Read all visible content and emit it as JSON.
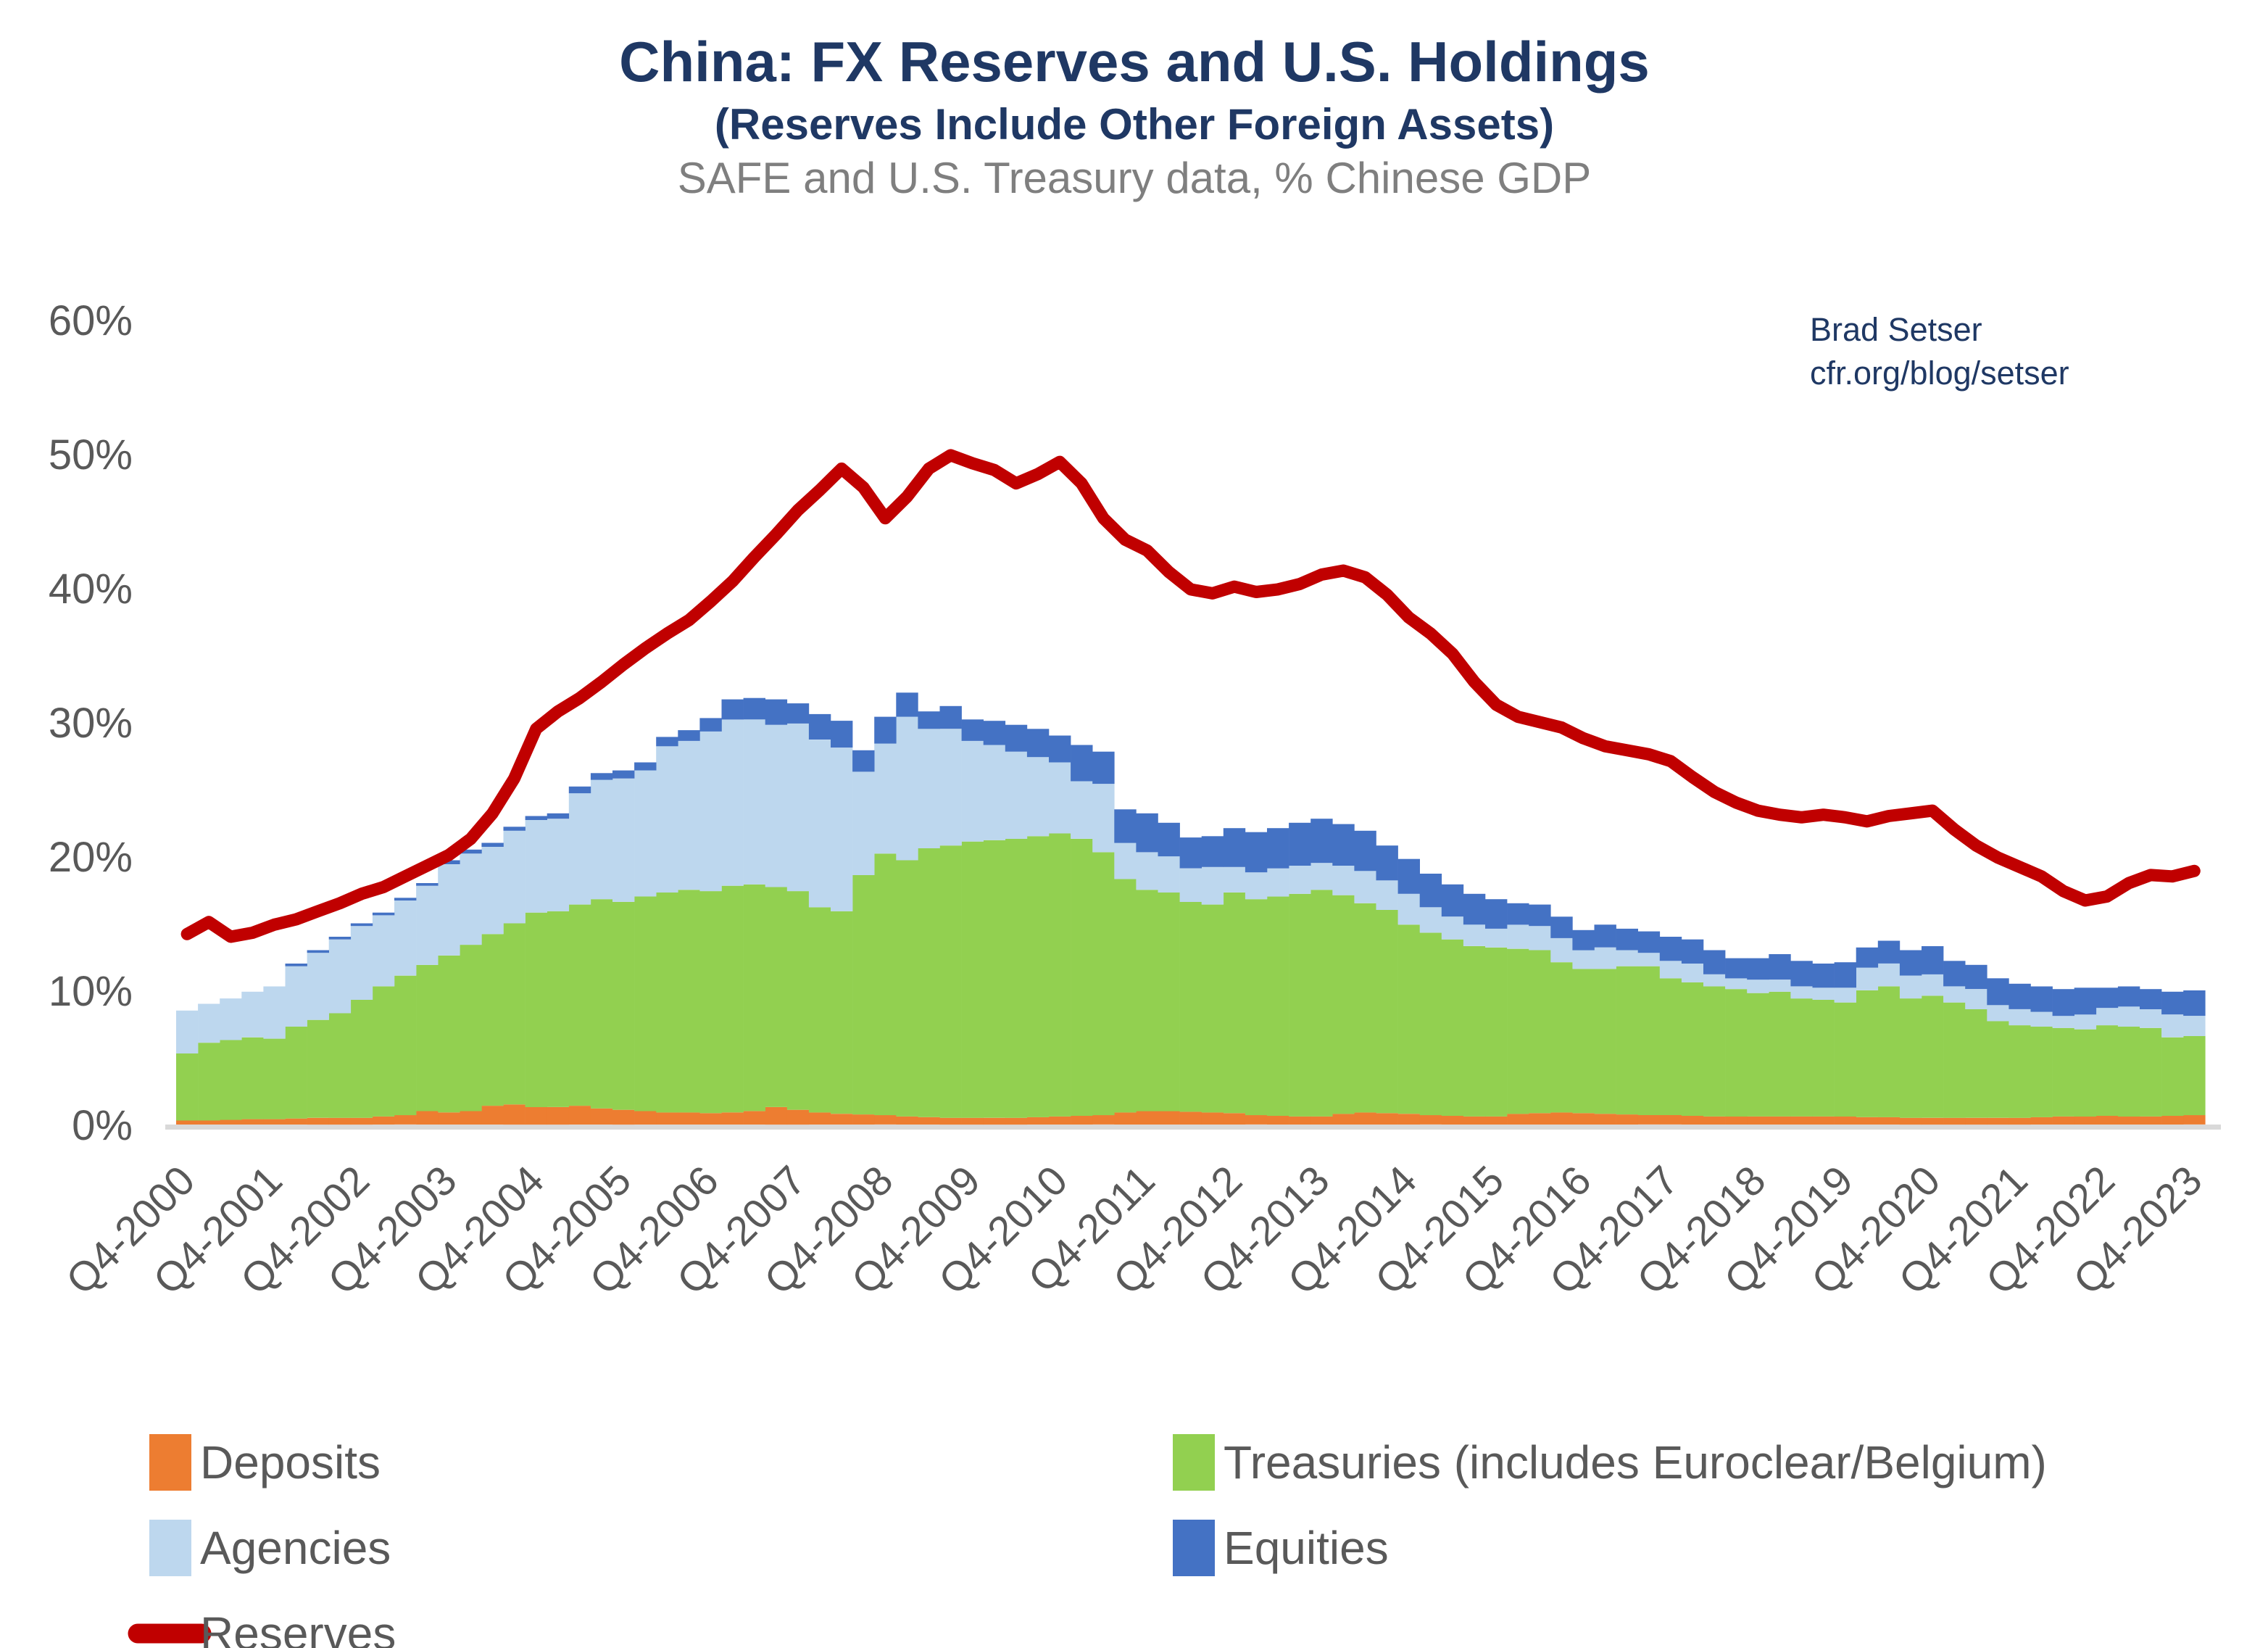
{
  "title": "China: FX Reserves and U.S. Holdings",
  "subtitle": "(Reserves Include Other Foreign Assets)",
  "caption": "SAFE and U.S. Treasury data, % Chinese GDP",
  "attribution": {
    "name": "Brad Setser",
    "url": "cfr.org/blog/setser"
  },
  "colors": {
    "deposits": "#ED7D31",
    "treasuries": "#92D050",
    "agencies": "#BDD7EE",
    "equities": "#4472C4",
    "reserves": "#C00000",
    "title_navy": "#1F3864",
    "axis_gray": "#595959",
    "baseline_gray": "#D9D9D9"
  },
  "legend": {
    "columns": [
      {
        "items": [
          {
            "label": "Deposits",
            "swatch": "square",
            "color": "#ED7D31"
          },
          {
            "label": "Agencies",
            "swatch": "square",
            "color": "#BDD7EE"
          },
          {
            "label": "Reserves",
            "swatch": "line",
            "color": "#C00000"
          }
        ]
      },
      {
        "items": [
          {
            "label": "Treasuries (includes Euroclear/Belgium)",
            "swatch": "square",
            "color": "#92D050"
          },
          {
            "label": "Equities",
            "swatch": "square",
            "color": "#4472C4"
          }
        ]
      }
    ]
  },
  "chart_data": {
    "type": "combo_stacked_bar_line",
    "grid": false,
    "legend_position": "bottom",
    "ylim": [
      0,
      60
    ],
    "ytick_values": [
      0,
      10,
      20,
      30,
      40,
      50,
      60
    ],
    "ytick_labels": [
      "0%",
      "10%",
      "20%",
      "30%",
      "40%",
      "50%",
      "60%"
    ],
    "x_tick_every": 4,
    "x_tick_labels": [
      "Q4-2000",
      "Q4-2001",
      "Q4-2002",
      "Q4-2003",
      "Q4-2004",
      "Q4-2005",
      "Q4-2006",
      "Q4-2007",
      "Q4-2008",
      "Q4-2009",
      "Q4-2010",
      "Q4-2011",
      "Q4-2012",
      "Q4-2013",
      "Q4-2014",
      "Q4-2015",
      "Q4-2016",
      "Q4-2017",
      "Q4-2018",
      "Q4-2019",
      "Q4-2020",
      "Q4-2021",
      "Q4-2022",
      "Q4-2023"
    ],
    "x": [
      "Q4-2000",
      "Q1-2001",
      "Q2-2001",
      "Q3-2001",
      "Q4-2001",
      "Q1-2002",
      "Q2-2002",
      "Q3-2002",
      "Q4-2002",
      "Q1-2003",
      "Q2-2003",
      "Q3-2003",
      "Q4-2003",
      "Q1-2004",
      "Q2-2004",
      "Q3-2004",
      "Q4-2004",
      "Q1-2005",
      "Q2-2005",
      "Q3-2005",
      "Q4-2005",
      "Q1-2006",
      "Q2-2006",
      "Q3-2006",
      "Q4-2006",
      "Q1-2007",
      "Q2-2007",
      "Q3-2007",
      "Q4-2007",
      "Q1-2008",
      "Q2-2008",
      "Q3-2008",
      "Q4-2008",
      "Q1-2009",
      "Q2-2009",
      "Q3-2009",
      "Q4-2009",
      "Q1-2010",
      "Q2-2010",
      "Q3-2010",
      "Q4-2010",
      "Q1-2011",
      "Q2-2011",
      "Q3-2011",
      "Q4-2011",
      "Q1-2012",
      "Q2-2012",
      "Q3-2012",
      "Q4-2012",
      "Q1-2013",
      "Q2-2013",
      "Q3-2013",
      "Q4-2013",
      "Q1-2014",
      "Q2-2014",
      "Q3-2014",
      "Q4-2014",
      "Q1-2015",
      "Q2-2015",
      "Q3-2015",
      "Q4-2015",
      "Q1-2016",
      "Q2-2016",
      "Q3-2016",
      "Q4-2016",
      "Q1-2017",
      "Q2-2017",
      "Q3-2017",
      "Q4-2017",
      "Q1-2018",
      "Q2-2018",
      "Q3-2018",
      "Q4-2018",
      "Q1-2019",
      "Q2-2019",
      "Q3-2019",
      "Q4-2019",
      "Q1-2020",
      "Q2-2020",
      "Q3-2020",
      "Q4-2020",
      "Q1-2021",
      "Q2-2021",
      "Q3-2021",
      "Q4-2021",
      "Q1-2022",
      "Q2-2022",
      "Q3-2022",
      "Q4-2022",
      "Q1-2023",
      "Q2-2023",
      "Q3-2023",
      "Q4-2023"
    ],
    "bar_series": [
      {
        "name": "Deposits",
        "color": "#ED7D31",
        "values": [
          0.3,
          0.3,
          0.35,
          0.4,
          0.4,
          0.45,
          0.5,
          0.5,
          0.5,
          0.6,
          0.7,
          1.0,
          0.9,
          1.0,
          1.4,
          1.5,
          1.3,
          1.3,
          1.4,
          1.2,
          1.1,
          1.0,
          0.9,
          0.9,
          0.85,
          0.9,
          1.0,
          1.3,
          1.1,
          0.9,
          0.8,
          0.75,
          0.7,
          0.6,
          0.55,
          0.5,
          0.5,
          0.5,
          0.5,
          0.55,
          0.6,
          0.65,
          0.7,
          0.9,
          1.0,
          1.0,
          0.95,
          0.9,
          0.85,
          0.7,
          0.65,
          0.6,
          0.6,
          0.8,
          0.9,
          0.85,
          0.8,
          0.7,
          0.65,
          0.6,
          0.6,
          0.8,
          0.85,
          0.9,
          0.85,
          0.8,
          0.75,
          0.7,
          0.7,
          0.65,
          0.6,
          0.6,
          0.6,
          0.6,
          0.6,
          0.6,
          0.6,
          0.55,
          0.55,
          0.5,
          0.5,
          0.5,
          0.5,
          0.5,
          0.5,
          0.55,
          0.6,
          0.6,
          0.65,
          0.6,
          0.6,
          0.65,
          0.7
        ]
      },
      {
        "name": "Treasuries (includes Euroclear/Belgium)",
        "color": "#92D050",
        "values": [
          5.0,
          5.8,
          5.95,
          6.1,
          6.0,
          6.85,
          7.3,
          7.8,
          8.8,
          9.7,
          10.4,
          10.9,
          11.7,
          12.4,
          12.8,
          13.5,
          14.5,
          14.6,
          15.0,
          15.6,
          15.5,
          16.0,
          16.4,
          16.6,
          16.55,
          16.9,
          16.9,
          16.4,
          16.3,
          15.3,
          15.1,
          17.85,
          19.5,
          19.1,
          20.05,
          20.3,
          20.6,
          20.7,
          20.8,
          20.95,
          21.1,
          20.65,
          19.6,
          17.4,
          16.5,
          16.3,
          15.65,
          15.5,
          16.45,
          16.1,
          16.35,
          16.6,
          16.9,
          16.3,
          15.6,
          15.15,
          14.1,
          13.6,
          13.15,
          12.7,
          12.6,
          12.3,
          12.15,
          11.2,
          10.75,
          10.8,
          11.05,
          11.1,
          10.2,
          9.95,
          9.7,
          9.5,
          9.2,
          9.3,
          8.8,
          8.7,
          8.5,
          9.45,
          9.75,
          8.9,
          9.1,
          8.6,
          8.1,
          7.2,
          6.9,
          6.75,
          6.6,
          6.5,
          6.75,
          6.7,
          6.6,
          5.85,
          5.9
        ]
      },
      {
        "name": "Agencies",
        "color": "#BDD7EE",
        "values": [
          3.2,
          2.9,
          3.1,
          3.4,
          3.9,
          4.5,
          5.0,
          5.5,
          5.5,
          5.3,
          5.6,
          5.9,
          6.8,
          6.8,
          6.5,
          6.9,
          6.9,
          6.9,
          8.3,
          8.9,
          9.2,
          9.4,
          10.9,
          11.1,
          11.9,
          12.4,
          12.3,
          12.1,
          12.5,
          12.5,
          12.2,
          7.7,
          8.2,
          10.7,
          8.9,
          8.7,
          7.5,
          7.1,
          6.5,
          5.9,
          5.3,
          4.3,
          5.1,
          2.7,
          2.8,
          2.7,
          2.5,
          2.8,
          1.9,
          2.0,
          2.1,
          2.1,
          2.0,
          2.2,
          2.4,
          2.2,
          2.3,
          1.9,
          1.7,
          1.6,
          1.4,
          1.8,
          1.8,
          1.8,
          1.4,
          1.6,
          1.2,
          1.0,
          1.3,
          1.4,
          0.9,
          0.8,
          1.0,
          0.9,
          0.9,
          0.9,
          1.1,
          1.7,
          1.7,
          1.7,
          1.6,
          1.2,
          1.5,
          1.2,
          1.2,
          1.1,
          0.9,
          1.1,
          1.3,
          1.5,
          1.4,
          1.7,
          1.5
        ]
      },
      {
        "name": "Equities",
        "color": "#4472C4",
        "values": [
          0,
          0,
          0,
          0,
          0,
          0.2,
          0.2,
          0.2,
          0.2,
          0.2,
          0.2,
          0.2,
          0.3,
          0.3,
          0.3,
          0.3,
          0.3,
          0.4,
          0.5,
          0.5,
          0.6,
          0.6,
          0.7,
          0.8,
          1.0,
          1.5,
          1.6,
          1.9,
          1.5,
          1.9,
          2.0,
          1.6,
          2.0,
          1.8,
          1.3,
          1.7,
          1.6,
          1.8,
          2.0,
          2.1,
          2.0,
          2.7,
          2.4,
          2.5,
          2.9,
          2.5,
          2.3,
          2.3,
          2.9,
          3.0,
          3.0,
          3.2,
          3.3,
          3.1,
          3.0,
          2.6,
          2.6,
          2.5,
          2.4,
          2.3,
          2.2,
          1.6,
          1.6,
          1.6,
          1.5,
          1.7,
          1.6,
          1.6,
          1.8,
          1.8,
          1.8,
          1.5,
          1.6,
          1.9,
          1.9,
          1.8,
          1.9,
          1.5,
          1.7,
          1.9,
          2.1,
          1.9,
          1.8,
          2.0,
          1.9,
          1.9,
          2.0,
          2.0,
          1.5,
          1.5,
          1.5,
          1.7,
          1.9
        ]
      }
    ],
    "line_series": {
      "name": "Reserves",
      "color": "#C00000",
      "values": [
        14.2,
        15.1,
        14.0,
        14.3,
        14.9,
        15.3,
        15.9,
        16.5,
        17.2,
        17.7,
        18.5,
        19.3,
        20.1,
        21.3,
        23.2,
        25.8,
        29.5,
        30.8,
        31.8,
        33.0,
        34.3,
        35.5,
        36.6,
        37.6,
        39.0,
        40.5,
        42.3,
        44.0,
        45.8,
        47.3,
        48.9,
        47.5,
        45.2,
        46.8,
        48.9,
        49.9,
        49.3,
        48.8,
        47.8,
        48.5,
        49.4,
        47.8,
        45.2,
        43.6,
        42.8,
        41.2,
        39.9,
        39.6,
        40.1,
        39.7,
        39.9,
        40.3,
        41.0,
        41.3,
        40.8,
        39.5,
        37.8,
        36.6,
        35.1,
        33.0,
        31.3,
        30.4,
        30.0,
        29.6,
        28.8,
        28.2,
        27.9,
        27.6,
        27.1,
        25.9,
        24.8,
        24.0,
        23.4,
        23.1,
        22.9,
        23.1,
        22.9,
        22.6,
        23.0,
        23.2,
        23.4,
        22.0,
        20.8,
        19.9,
        19.2,
        18.5,
        17.4,
        16.7,
        17.0,
        18.0,
        18.6,
        18.5,
        18.9
      ]
    }
  }
}
